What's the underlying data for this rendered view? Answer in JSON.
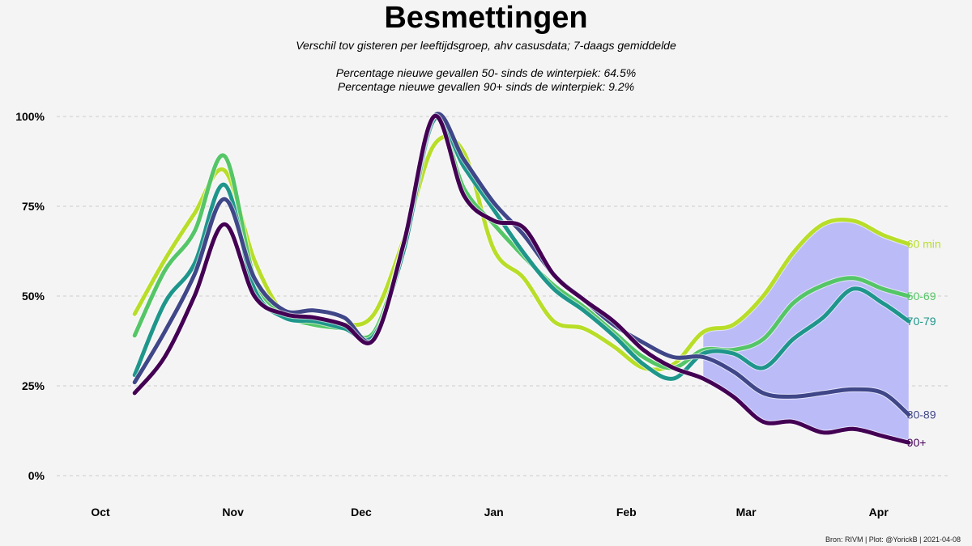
{
  "title": "Besmettingen",
  "subtitle": "Verschil tov gisteren per leeftijdsgroep, ahv casusdata; 7-daags gemiddelde",
  "notes": [
    "Percentage nieuwe gevallen 50- sinds de winterpiek: 64.5%",
    "Percentage nieuwe gevallen 90+ sinds de winterpiek: 9.2%"
  ],
  "caption": "Bron: RIVM | Plot: @YorickB  |  2021-04-08",
  "chart_data": {
    "type": "line",
    "title": "Besmettingen",
    "xlabel": "",
    "ylabel": "",
    "x": [
      "Oct 9",
      "Oct 16",
      "Oct 23",
      "Oct 30",
      "Nov 6",
      "Nov 13",
      "Nov 20",
      "Nov 27",
      "Dec 4",
      "Dec 11",
      "Dec 18",
      "Dec 25",
      "Jan 1",
      "Jan 8",
      "Jan 15",
      "Jan 22",
      "Jan 29",
      "Feb 5",
      "Feb 12",
      "Feb 19",
      "Feb 26",
      "Mar 5",
      "Mar 12",
      "Mar 19",
      "Mar 26",
      "Apr 2",
      "Apr 8"
    ],
    "x_ticks": [
      "Oct",
      "Nov",
      "Dec",
      "Jan",
      "Feb",
      "Mar",
      "Apr"
    ],
    "ylim": [
      0,
      100
    ],
    "y_ticks": [
      0,
      25,
      50,
      75,
      100
    ],
    "y_tick_labels": [
      "0%",
      "25%",
      "50%",
      "75%",
      "100%"
    ],
    "grid": "horizontal dashed",
    "shaded_band": {
      "between": [
        "60 min",
        "90+"
      ],
      "from_x": "Feb 19",
      "color": "#bbbbf8"
    },
    "series": [
      {
        "name": "60 min",
        "label": "60 min",
        "color": "#b8de29",
        "values": [
          45,
          60,
          73,
          85,
          60,
          45,
          44,
          42,
          45,
          66,
          92,
          90,
          63,
          55,
          43,
          41,
          36,
          30,
          31,
          40,
          42,
          50,
          62,
          70,
          71,
          67,
          64.5
        ]
      },
      {
        "name": "50-69",
        "label": "50-69",
        "color": "#55c667",
        "values": [
          39,
          57,
          68,
          89,
          55,
          45,
          42,
          41,
          40,
          65,
          100,
          80,
          70,
          61,
          53,
          47,
          40,
          33,
          30,
          35,
          35,
          38,
          48,
          53,
          55,
          52,
          50
        ]
      },
      {
        "name": "70-79",
        "label": "70-79",
        "color": "#1f968b",
        "values": [
          28,
          48,
          59,
          81,
          52,
          44,
          43,
          41,
          39,
          63,
          99,
          86,
          74,
          62,
          52,
          46,
          39,
          31,
          27,
          34,
          34,
          30,
          38,
          44,
          52,
          48,
          43
        ]
      },
      {
        "name": "80-89",
        "label": "80-89",
        "color": "#404788",
        "values": [
          26,
          40,
          56,
          77,
          55,
          46,
          46,
          44,
          38,
          65,
          100,
          88,
          76,
          67,
          56,
          49,
          42,
          37,
          33,
          33,
          29,
          23,
          22,
          23,
          24,
          23,
          17
        ]
      },
      {
        "name": "90+",
        "label": "90+",
        "color": "#440154",
        "values": [
          23,
          33,
          50,
          70,
          50,
          45,
          44,
          42,
          38,
          65,
          100,
          78,
          71,
          69,
          56,
          49,
          43,
          35,
          30,
          27,
          22,
          15,
          15,
          12,
          13,
          11,
          9.2
        ]
      }
    ]
  }
}
